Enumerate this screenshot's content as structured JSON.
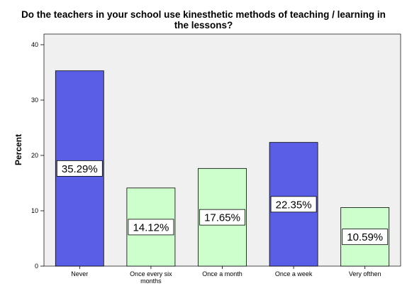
{
  "chart_data": {
    "type": "bar",
    "title": "Do the teachers in your school use kinesthetic methods of teaching / learning in the lessons?",
    "title_lines": [
      "Do the teachers in your school use kinesthetic methods of teaching / learning in",
      "the lessons?"
    ],
    "xlabel": "",
    "ylabel": "Percent",
    "ylim": [
      0,
      40
    ],
    "yticks": [
      "0",
      "10",
      "20",
      "30",
      "40"
    ],
    "grid": false,
    "categories": [
      {
        "label": "Never",
        "lines": [
          "Never"
        ]
      },
      {
        "label": "Once every six months",
        "lines": [
          "Once every six",
          "months"
        ]
      },
      {
        "label": "Once a month",
        "lines": [
          "Once a month"
        ]
      },
      {
        "label": "Once a week",
        "lines": [
          "Once a week"
        ]
      },
      {
        "label": "Very ofthen",
        "lines": [
          "Very ofthen"
        ]
      }
    ],
    "values": [
      35.29,
      14.12,
      17.65,
      22.35,
      10.59
    ],
    "data_labels": [
      "35.29%",
      "14.12%",
      "17.65%",
      "22.35%",
      "10.59%"
    ],
    "bar_colors": [
      "#5a5ee6",
      "#ccffcc",
      "#ccffcc",
      "#5a5ee6",
      "#ccffcc"
    ],
    "plot_background": "#f0f0f0"
  }
}
